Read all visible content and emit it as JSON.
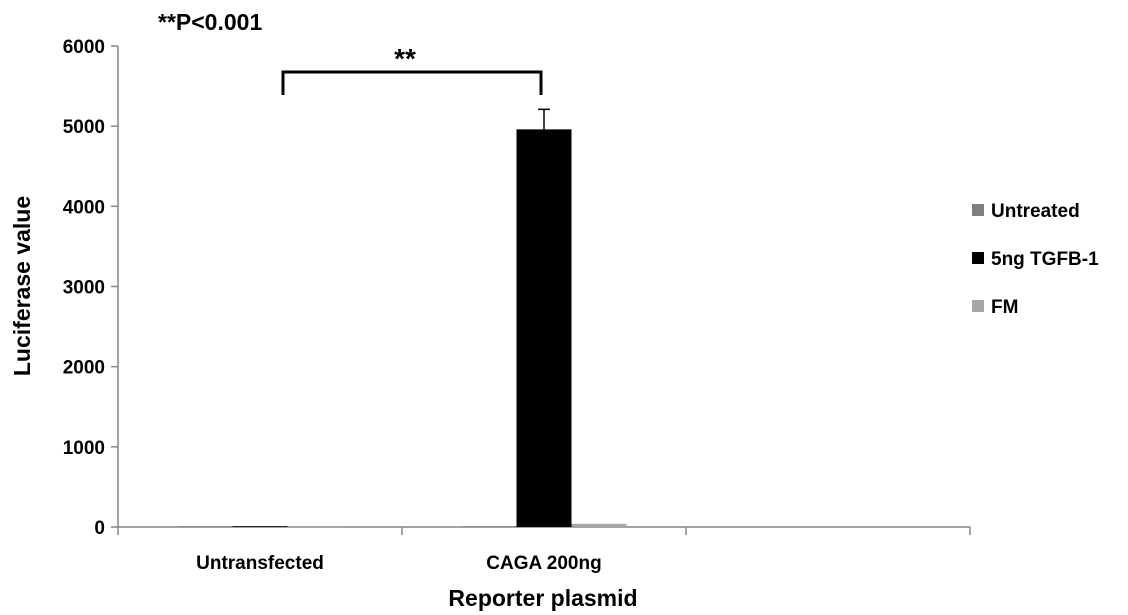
{
  "chart_data": {
    "type": "bar",
    "title": "",
    "categories": [
      "Untransfected",
      "CAGA 200ng",
      ""
    ],
    "series": [
      {
        "name": "Untreated",
        "values": [
          2,
          10,
          null
        ],
        "errors": [
          0,
          0,
          null
        ],
        "color": "#7f7f7f"
      },
      {
        "name": "5ng TGFB-1",
        "values": [
          2,
          4960,
          null
        ],
        "errors": [
          0,
          250,
          null
        ],
        "color": "#000000"
      },
      {
        "name": "FM",
        "values": [
          2,
          40,
          null
        ],
        "errors": [
          0,
          0,
          null
        ],
        "color": "#a6a6a6"
      }
    ],
    "xlabel": "Reporter plasmid",
    "ylabel": "Luciferase value",
    "ylim": [
      0,
      6000
    ],
    "yticks": [
      "0",
      "1000",
      "2000",
      "3000",
      "4000",
      "5000",
      "6000"
    ],
    "grid": false,
    "legend_position": "right",
    "annotations": {
      "pvalue": "**P<0.001",
      "significance": "**"
    }
  }
}
